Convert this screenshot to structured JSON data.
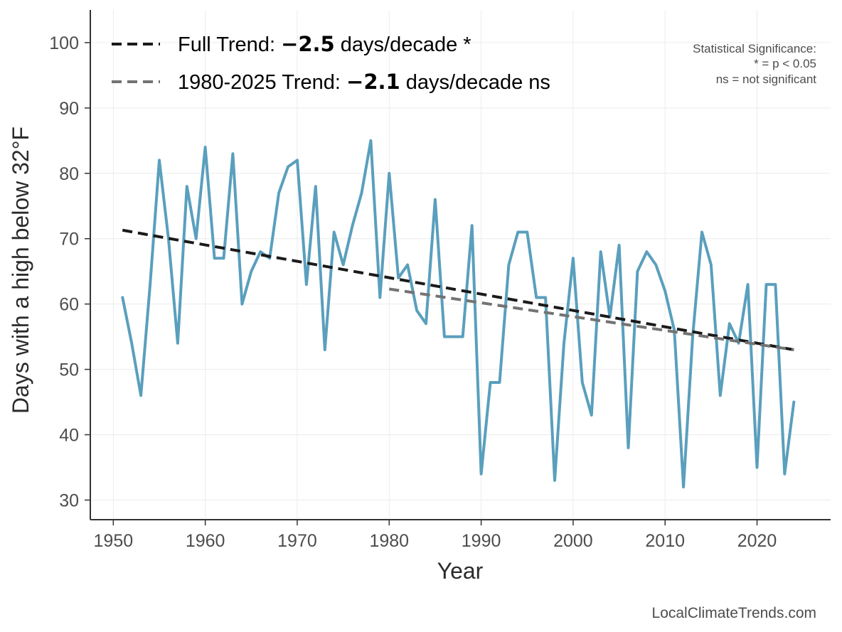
{
  "chart_data": {
    "type": "line",
    "xlabel": "Year",
    "ylabel": "Days with a high below 32°F",
    "xlim": [
      1947.5,
      2028
    ],
    "ylim": [
      27,
      105
    ],
    "xticks": [
      1950,
      1960,
      1970,
      1980,
      1990,
      2000,
      2010,
      2020
    ],
    "yticks": [
      30,
      40,
      50,
      60,
      70,
      80,
      90,
      100
    ],
    "grid": true,
    "legend_position": "top-left",
    "series": [
      {
        "name": "",
        "color": "#5a9fbd",
        "x": [
          1951,
          1952,
          1953,
          1954,
          1955,
          1956,
          1957,
          1958,
          1959,
          1960,
          1961,
          1962,
          1963,
          1964,
          1965,
          1966,
          1967,
          1968,
          1969,
          1970,
          1971,
          1972,
          1973,
          1974,
          1975,
          1976,
          1977,
          1978,
          1979,
          1980,
          1981,
          1982,
          1983,
          1984,
          1985,
          1986,
          1987,
          1988,
          1989,
          1990,
          1991,
          1992,
          1993,
          1994,
          1995,
          1996,
          1997,
          1998,
          1999,
          2000,
          2001,
          2002,
          2003,
          2004,
          2005,
          2006,
          2007,
          2008,
          2009,
          2010,
          2011,
          2012,
          2013,
          2014,
          2015,
          2016,
          2017,
          2018,
          2019,
          2020,
          2021,
          2022,
          2023,
          2024
        ],
        "y": [
          61,
          54,
          46,
          63,
          82,
          70,
          54,
          78,
          70,
          84,
          67,
          67,
          83,
          60,
          65,
          68,
          67,
          77,
          81,
          82,
          63,
          78,
          53,
          71,
          66,
          72,
          77,
          85,
          61,
          80,
          64,
          66,
          59,
          57,
          76,
          55,
          55,
          55,
          72,
          34,
          48,
          48,
          66,
          71,
          71,
          61,
          61,
          33,
          54,
          67,
          48,
          43,
          68,
          58,
          69,
          38,
          65,
          68,
          66,
          62,
          56,
          32,
          55,
          71,
          66,
          46,
          57,
          54,
          63,
          35,
          63,
          63,
          34,
          45
        ]
      }
    ],
    "trends": [
      {
        "label": "Full Trend: ",
        "value": "−2.5",
        "unit": " days/decade *",
        "color": "#1a1a1a",
        "x": [
          1951,
          2024
        ],
        "y": [
          71.3,
          53.0
        ]
      },
      {
        "label": "1980-2025 Trend: ",
        "value": "−2.1",
        "unit": " days/decade ns",
        "color": "#737373",
        "x": [
          1980,
          2024
        ],
        "y": [
          62.3,
          53.0
        ]
      }
    ],
    "significance_note": [
      "Statistical Significance:",
      "* = p < 0.05",
      "ns = not significant"
    ],
    "source": "LocalClimateTrends.com"
  }
}
